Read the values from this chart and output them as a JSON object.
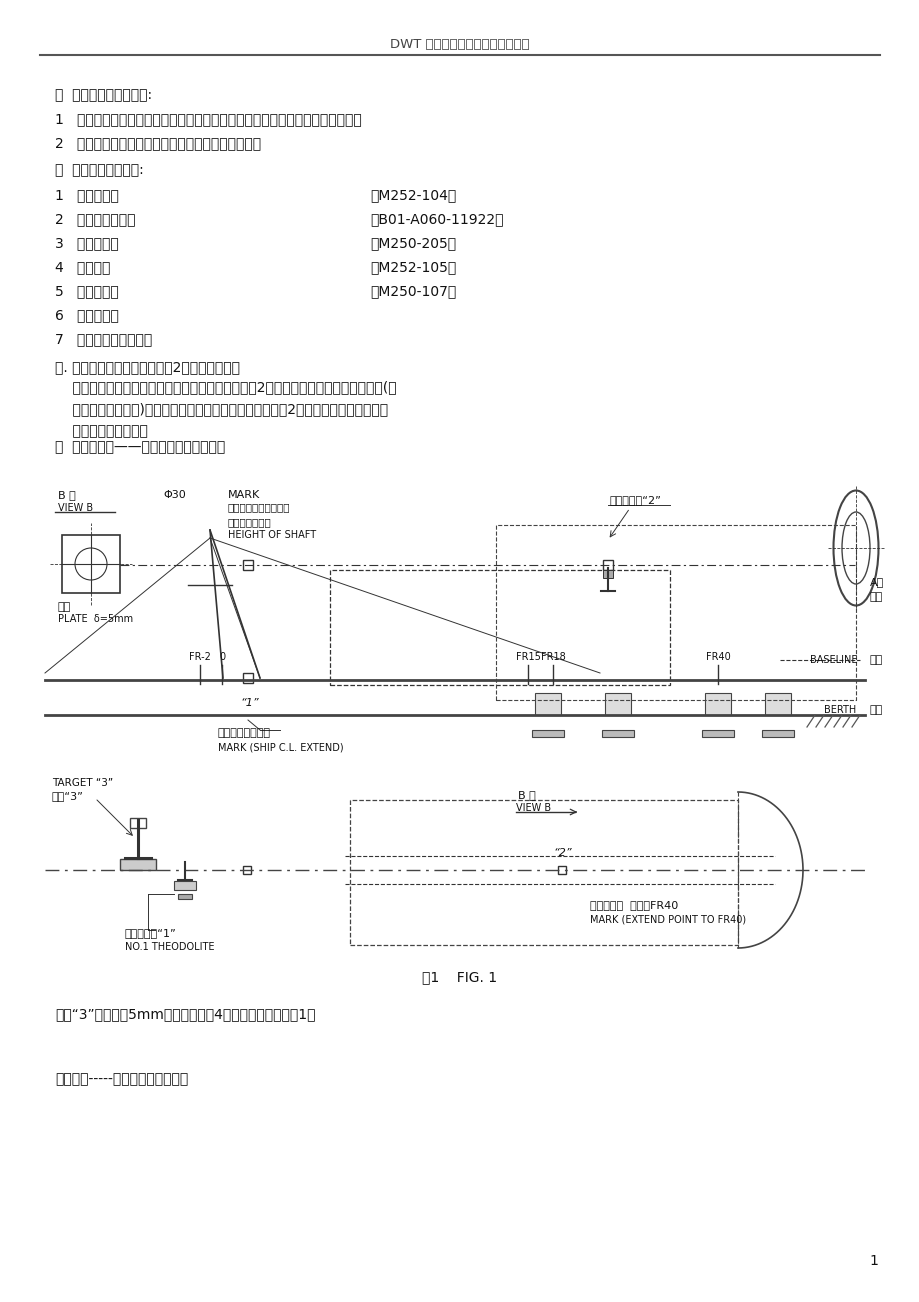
{
  "title": "DWT 轴系安装及主机定位工艺规程",
  "bg_color": "#ffffff",
  "text_color": "#1a1a1a",
  "page_number": "1",
  "section1_header": "一  轴系安装的注意事项:",
  "section1_items": [
    "1   在进行轴系吸装前应仔细检查吸运工具，如吸索、眼板、卸扣等应安全可靠。",
    "2   在整个施工过程中要严格遵守有关安全操作规程。"
  ],
  "section2_header": "二  主要参考图纸资料:",
  "section2_items": [
    [
      "1   轴系布置图",
      "（M252-104）"
    ],
    [
      "2   尾管轴承详细图",
      "（B01-A060-11922）"
    ],
    [
      "3   主机安装图",
      "（M250-205）"
    ],
    [
      "4   螺旋桨图",
      "（M252-105）"
    ],
    [
      "5   机舶布置图",
      "（M250-107）"
    ],
    [
      "6   分段划分图",
      ""
    ],
    [
      "7   尾管密封装置工作图",
      ""
    ]
  ],
  "section3_header": "三. 机舶后部区域底层分段合或2精度控制要点：",
  "section3_lines": [
    "    为了确保轴系安装的精度要求，在分段制造、合或2中应满足相关文件的精度要求。(参",
    "    见精度作业指导书)特别在进行机舶后部区域低层分段合或2时，要对相关各段的位置",
    "    精度进行严格控制。"
  ],
  "section4_header": "四  轴系安装前——照光采用工具及布置图",
  "figure_caption": "图1    FIG. 1",
  "footer_text1": "光靶“3”的材料为5mm钉板，高度剠4米左右，外圆直径剠1米",
  "footer_text2": "采用工具-----激光经纬仪、光靶。"
}
